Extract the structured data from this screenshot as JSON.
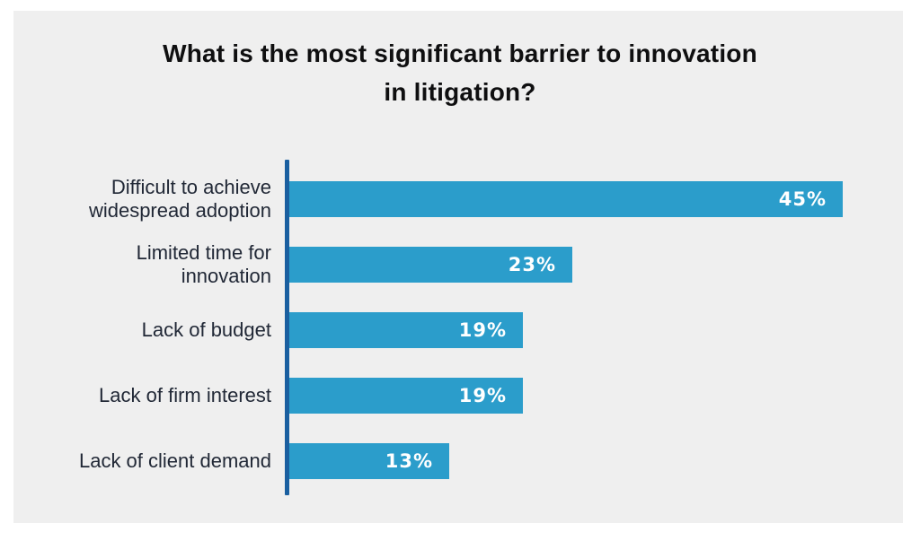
{
  "colors": {
    "page_background": "#ffffff",
    "panel_background": "#efefef",
    "bar_fill": "#2b9dcb",
    "axis_line": "#1a5fa0",
    "title_text": "#0f0f10",
    "category_text": "#212836",
    "value_text": "#ffffff"
  },
  "chart_data": {
    "type": "bar",
    "orientation": "horizontal",
    "title": "What is the most significant barrier to innovation\nin litigation?",
    "categories": [
      "Difficult to achieve\nwidespread adoption",
      "Limited time for\ninnovation",
      "Lack of budget",
      "Lack of firm interest",
      "Lack of client demand"
    ],
    "values": [
      45,
      23,
      19,
      19,
      13
    ],
    "value_labels": [
      "45%",
      "23%",
      "19%",
      "19%",
      "13%"
    ],
    "xlabel": "",
    "ylabel": "",
    "xlim": [
      0,
      45
    ],
    "grid": false,
    "legend": false,
    "value_label_position": "inside-end"
  }
}
